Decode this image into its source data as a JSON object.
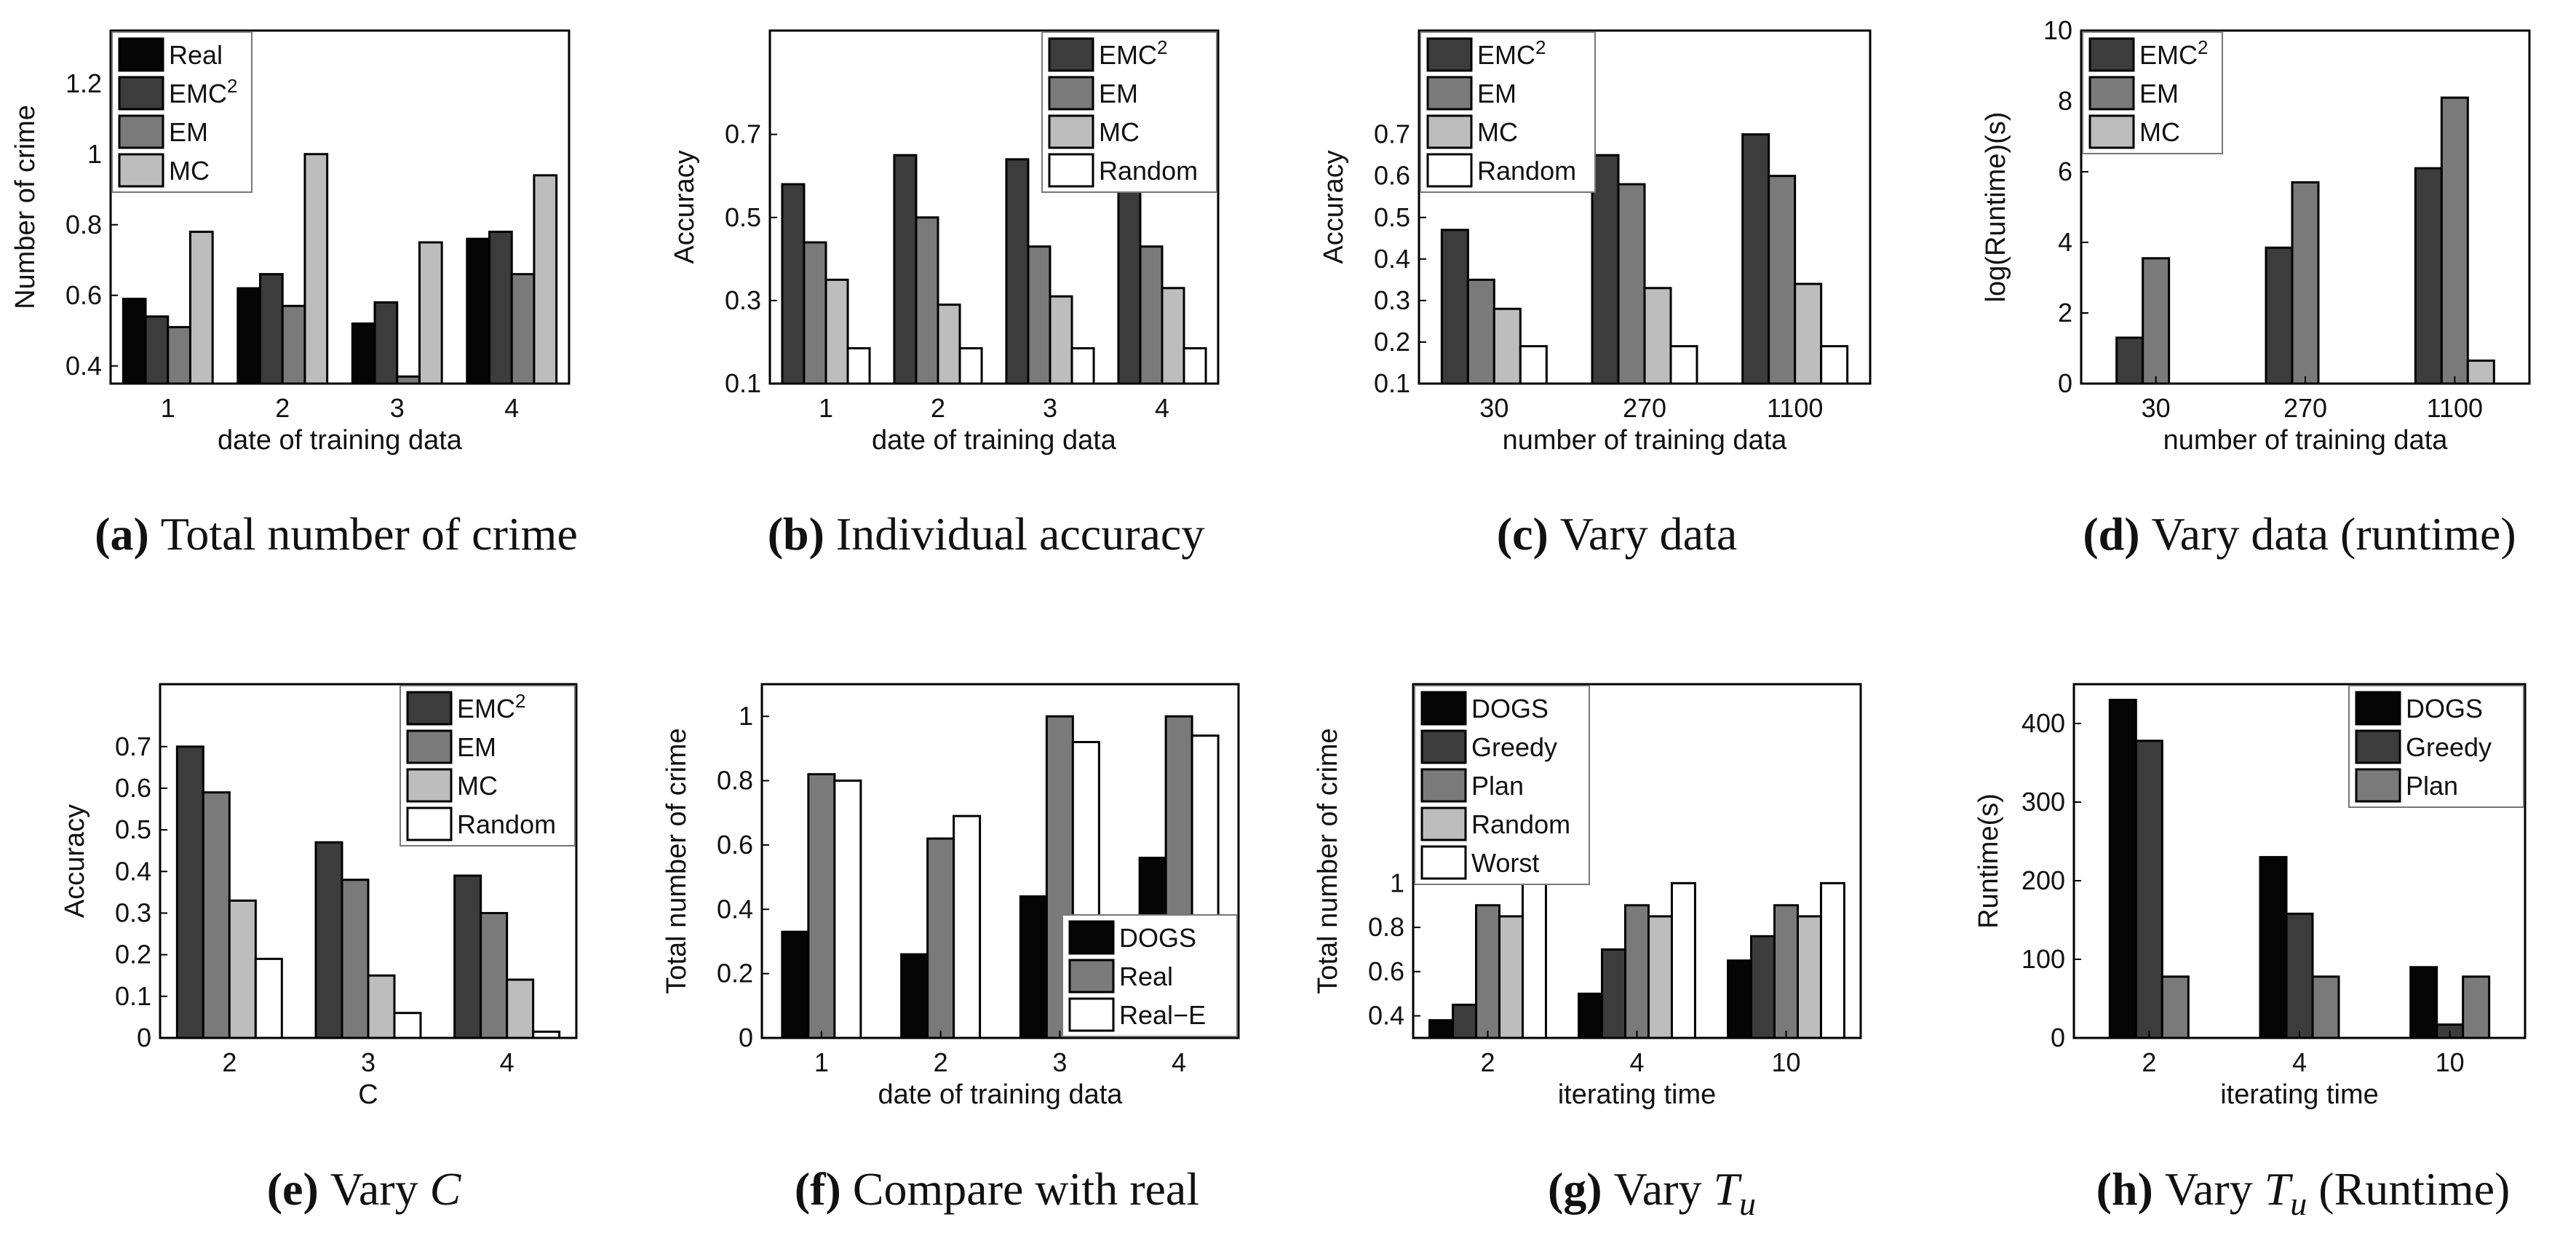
{
  "colors": {
    "black": "#050505",
    "dark": "#3c3c3c",
    "mid": "#7a7a7a",
    "light": "#bdbdbd",
    "white": "#ffffff"
  },
  "chart_data": [
    {
      "id": "a",
      "type": "bar",
      "caption": {
        "label": "(a)",
        "text": "Total number of crime",
        "suffix": ""
      },
      "xlabel": "date of training data",
      "ylabel": "Number of crime",
      "ylim": [
        0.35,
        1.35
      ],
      "yticks": [
        0.4,
        0.6,
        0.8,
        1,
        1.2
      ],
      "categories": [
        "1",
        "2",
        "3",
        "4"
      ],
      "legend_position": "top-left",
      "series": [
        {
          "name": "Real",
          "color": "black",
          "values": [
            0.59,
            0.62,
            0.52,
            0.76
          ]
        },
        {
          "name": "EMC2",
          "color": "dark",
          "values": [
            0.54,
            0.66,
            0.58,
            0.78
          ]
        },
        {
          "name": "EM",
          "color": "mid",
          "values": [
            0.51,
            0.57,
            0.37,
            0.66
          ]
        },
        {
          "name": "MC",
          "color": "light",
          "values": [
            0.78,
            1.0,
            0.75,
            0.94
          ]
        }
      ]
    },
    {
      "id": "b",
      "type": "bar",
      "caption": {
        "label": "(b)",
        "text": "Individual accuracy",
        "suffix": ""
      },
      "xlabel": "date of training data",
      "ylabel": "Accuracy",
      "ylim": [
        0.1,
        0.95
      ],
      "yticks": [
        0.1,
        0.3,
        0.5,
        0.7
      ],
      "categories": [
        "1",
        "2",
        "3",
        "4"
      ],
      "legend_position": "top-right",
      "series": [
        {
          "name": "EMC2",
          "color": "dark",
          "values": [
            0.58,
            0.65,
            0.64,
            0.6
          ]
        },
        {
          "name": "EM",
          "color": "mid",
          "values": [
            0.44,
            0.5,
            0.43,
            0.43
          ]
        },
        {
          "name": "MC",
          "color": "light",
          "values": [
            0.35,
            0.29,
            0.31,
            0.33
          ]
        },
        {
          "name": "Random",
          "color": "white",
          "values": [
            0.185,
            0.185,
            0.185,
            0.185
          ]
        }
      ]
    },
    {
      "id": "c",
      "type": "bar",
      "caption": {
        "label": "(c)",
        "text": "Vary data",
        "suffix": ""
      },
      "xlabel": "number of training data",
      "ylabel": "Accuracy",
      "ylim": [
        0.1,
        0.95
      ],
      "yticks": [
        0.1,
        0.2,
        0.3,
        0.4,
        0.5,
        0.6,
        0.7
      ],
      "categories": [
        "30",
        "270",
        "1100"
      ],
      "legend_position": "top-left",
      "series": [
        {
          "name": "EMC2",
          "color": "dark",
          "values": [
            0.47,
            0.65,
            0.7
          ]
        },
        {
          "name": "EM",
          "color": "mid",
          "values": [
            0.35,
            0.58,
            0.6
          ]
        },
        {
          "name": "MC",
          "color": "light",
          "values": [
            0.28,
            0.33,
            0.34
          ]
        },
        {
          "name": "Random",
          "color": "white",
          "values": [
            0.19,
            0.19,
            0.19
          ]
        }
      ]
    },
    {
      "id": "d",
      "type": "bar",
      "caption": {
        "label": "(d)",
        "text": "Vary data (runtime)",
        "suffix": ""
      },
      "xlabel": "number of training data",
      "ylabel": "log(Runtime)(s)",
      "ylim": [
        0,
        10
      ],
      "yticks": [
        0,
        2,
        4,
        6,
        8,
        10
      ],
      "categories": [
        "30",
        "270",
        "1100"
      ],
      "legend_position": "top-left",
      "series": [
        {
          "name": "EMC2",
          "color": "dark",
          "values": [
            1.3,
            3.85,
            6.1
          ]
        },
        {
          "name": "EM",
          "color": "mid",
          "values": [
            3.55,
            5.7,
            8.1
          ]
        },
        {
          "name": "MC",
          "color": "light",
          "values": [
            0,
            0,
            0.65
          ]
        }
      ]
    },
    {
      "id": "e",
      "type": "bar",
      "caption": {
        "label": "(e)",
        "text": "Vary ",
        "italic": "C",
        "suffix": ""
      },
      "xlabel": "C",
      "ylabel": "Accuracy",
      "ylim": [
        0,
        0.85
      ],
      "yticks": [
        0,
        0.1,
        0.2,
        0.3,
        0.4,
        0.5,
        0.6,
        0.7
      ],
      "categories": [
        "2",
        "3",
        "4"
      ],
      "legend_position": "top-right",
      "series": [
        {
          "name": "EMC2",
          "color": "dark",
          "values": [
            0.7,
            0.47,
            0.39
          ]
        },
        {
          "name": "EM",
          "color": "mid",
          "values": [
            0.59,
            0.38,
            0.3
          ]
        },
        {
          "name": "MC",
          "color": "light",
          "values": [
            0.33,
            0.15,
            0.14
          ]
        },
        {
          "name": "Random",
          "color": "white",
          "values": [
            0.19,
            0.06,
            0.015
          ]
        }
      ]
    },
    {
      "id": "f",
      "type": "bar",
      "caption": {
        "label": "(f)",
        "text": "Compare with real",
        "suffix": ""
      },
      "xlabel": "date of training data",
      "ylabel": "Total number of crime",
      "ylim": [
        0,
        1.1
      ],
      "yticks": [
        0,
        0.2,
        0.4,
        0.6,
        0.8,
        1
      ],
      "categories": [
        "1",
        "2",
        "3",
        "4"
      ],
      "legend_position": "bottom-right",
      "series": [
        {
          "name": "DOGS",
          "color": "black",
          "values": [
            0.33,
            0.26,
            0.44,
            0.56
          ]
        },
        {
          "name": "Real",
          "color": "mid",
          "values": [
            0.82,
            0.62,
            1.0,
            1.0
          ]
        },
        {
          "name": "Real−E",
          "color": "white",
          "values": [
            0.8,
            0.69,
            0.92,
            0.94
          ]
        }
      ]
    },
    {
      "id": "g",
      "type": "bar",
      "caption": {
        "label": "(g)",
        "text": "Vary ",
        "italic": "T",
        "sub": "u",
        "suffix": ""
      },
      "xlabel": "iterating time",
      "ylabel": "Total number of crime",
      "ylim": [
        0.3,
        1.9
      ],
      "yticks": [
        0.4,
        0.6,
        0.8,
        1
      ],
      "categories": [
        "2",
        "4",
        "10"
      ],
      "legend_position": "top-left",
      "series": [
        {
          "name": "DOGS",
          "color": "black",
          "values": [
            0.38,
            0.5,
            0.65
          ]
        },
        {
          "name": "Greedy",
          "color": "dark",
          "values": [
            0.45,
            0.7,
            0.76
          ]
        },
        {
          "name": "Plan",
          "color": "mid",
          "values": [
            0.9,
            0.9,
            0.9
          ]
        },
        {
          "name": "Random",
          "color": "light",
          "values": [
            0.85,
            0.85,
            0.85
          ]
        },
        {
          "name": "Worst",
          "color": "white",
          "values": [
            1.0,
            1.0,
            1.0
          ]
        }
      ]
    },
    {
      "id": "h",
      "type": "bar",
      "caption": {
        "label": "(h)",
        "text": "Vary ",
        "italic": "T",
        "sub": "u",
        "suffix": " (Runtime)"
      },
      "xlabel": "iterating time",
      "ylabel": "Runtime(s)",
      "ylim": [
        0,
        450
      ],
      "yticks": [
        0,
        100,
        200,
        300,
        400
      ],
      "categories": [
        "2",
        "4",
        "10"
      ],
      "legend_position": "top-right",
      "series": [
        {
          "name": "DOGS",
          "color": "black",
          "values": [
            430,
            230,
            90
          ]
        },
        {
          "name": "Greedy",
          "color": "dark",
          "values": [
            378,
            158,
            17
          ]
        },
        {
          "name": "Plan",
          "color": "mid",
          "values": [
            78,
            78,
            78
          ]
        }
      ]
    }
  ]
}
